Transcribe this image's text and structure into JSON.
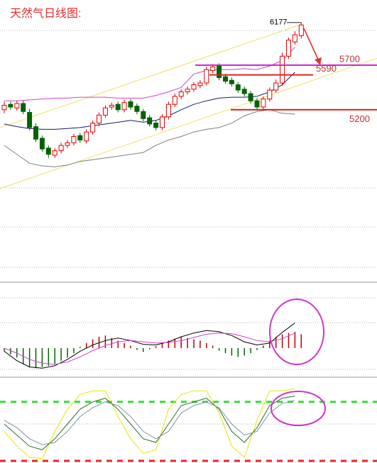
{
  "chart_data": [
    {
      "type": "candlestick",
      "title": "天然气日线图:",
      "open": [
        5200,
        5260,
        5220,
        5270,
        5170,
        5010,
        4880,
        4770,
        4690,
        4740,
        4800,
        4830,
        4910,
        4850,
        4950,
        5050,
        5140,
        5230,
        5260,
        5200,
        5290,
        5240,
        5180,
        5110,
        5050,
        5000,
        5120,
        5260,
        5350,
        5400,
        5430,
        5470,
        5500,
        5640,
        5690,
        5570,
        5530,
        5480,
        5430,
        5380,
        5300,
        5230,
        5320,
        5420,
        5500,
        5800,
        5960,
        6030
      ],
      "high": [
        5290,
        5290,
        5300,
        5300,
        5210,
        5050,
        4910,
        4800,
        4770,
        4830,
        4860,
        4930,
        4940,
        4980,
        5080,
        5170,
        5250,
        5280,
        5290,
        5310,
        5320,
        5270,
        5210,
        5140,
        5080,
        5150,
        5290,
        5380,
        5430,
        5460,
        5510,
        5530,
        5680,
        5710,
        5720,
        5600,
        5560,
        5510,
        5460,
        5410,
        5330,
        5350,
        5450,
        5540,
        5840,
        6010,
        6080,
        6177
      ],
      "low": [
        5160,
        5200,
        5190,
        5150,
        4970,
        4840,
        4730,
        4660,
        4660,
        4710,
        4770,
        4800,
        4830,
        4820,
        4920,
        5020,
        5110,
        5200,
        5170,
        5170,
        5200,
        5150,
        5070,
        5010,
        4970,
        4970,
        5090,
        5230,
        5320,
        5370,
        5400,
        5440,
        5470,
        5610,
        5530,
        5490,
        5460,
        5390,
        5350,
        5270,
        5200,
        5200,
        5290,
        5390,
        5470,
        5770,
        5930,
        6000
      ],
      "close": [
        5250,
        5230,
        5270,
        5180,
        5000,
        4870,
        4760,
        4700,
        4740,
        4800,
        4830,
        4900,
        4860,
        4950,
        5050,
        5140,
        5220,
        5250,
        5200,
        5280,
        5230,
        5180,
        5100,
        5040,
        5000,
        5120,
        5260,
        5350,
        5400,
        5430,
        5480,
        5500,
        5650,
        5680,
        5560,
        5520,
        5490,
        5420,
        5380,
        5300,
        5230,
        5320,
        5420,
        5500,
        5800,
        5980,
        6040,
        6150
      ],
      "up_color": "#e00000",
      "down_color": "#006400",
      "ylim": [
        3330,
        6430
      ],
      "series": [
        {
          "color": "#d040d0",
          "x": [
            0,
            2,
            4,
            6,
            8,
            10,
            12,
            14,
            16,
            18,
            20,
            22,
            24,
            26,
            28,
            30,
            32,
            34,
            36,
            38,
            40,
            42,
            44,
            46
          ],
          "values": [
            5300,
            5300,
            5310,
            5320,
            5330,
            5330,
            5340,
            5340,
            5340,
            5330,
            5330,
            5330,
            5360,
            5400,
            5450,
            5600,
            5640,
            5650,
            5650,
            5660,
            5650,
            5690,
            5750,
            5900
          ]
        },
        {
          "color": "#1a1a6e",
          "x": [
            0,
            2,
            4,
            6,
            8,
            10,
            12,
            14,
            16,
            18,
            20,
            22,
            24,
            26,
            28,
            30,
            32,
            34,
            36,
            38,
            40,
            42,
            44,
            46
          ],
          "values": [
            5040,
            5010,
            4990,
            4980,
            4980,
            4990,
            5000,
            5020,
            5040,
            5060,
            5080,
            5060,
            5080,
            5130,
            5200,
            5260,
            5300,
            5330,
            5340,
            5340,
            5350,
            5400,
            5480,
            5620
          ]
        },
        {
          "color": "#808080",
          "x": [
            0,
            2,
            4,
            6,
            8,
            10,
            12,
            14,
            16,
            18,
            20,
            22,
            24,
            26,
            28,
            30,
            32,
            34,
            36,
            38,
            40,
            42,
            44,
            46
          ],
          "values": [
            4800,
            4700,
            4600,
            4570,
            4560,
            4580,
            4620,
            4640,
            4660,
            4680,
            4700,
            4720,
            4800,
            4860,
            4900,
            4950,
            4980,
            5000,
            5050,
            5130,
            5180,
            5200,
            5160,
            5150
          ]
        }
      ],
      "levels": [
        {
          "value": 5700,
          "color": "#cc22cc"
        },
        {
          "value": 5590,
          "color": "#dd2222"
        },
        {
          "value": 5200,
          "color": "#cc2222"
        }
      ]
    },
    {
      "type": "bar",
      "values": [
        -5,
        -10,
        -15,
        -25,
        -30,
        -32,
        -30,
        -28,
        -25,
        -20,
        -15,
        -8,
        2,
        8,
        14,
        18,
        20,
        16,
        12,
        8,
        4,
        -3,
        -6,
        -2,
        3,
        8,
        12,
        15,
        18,
        16,
        14,
        12,
        8,
        4,
        -4,
        -8,
        -12,
        -14,
        -12,
        -8,
        -3,
        4,
        12,
        18,
        22,
        24,
        26,
        22
      ],
      "up_color": "#c00000",
      "down_color": "#006400",
      "ylim": [
        -35,
        80
      ],
      "series": [
        {
          "color": "#000000",
          "x": [
            0,
            2,
            4,
            6,
            8,
            10,
            12,
            14,
            16,
            18,
            20,
            22,
            24,
            26,
            28,
            30,
            32,
            34,
            36,
            38,
            40,
            42,
            44,
            46
          ],
          "values": [
            -5,
            -20,
            -30,
            -32,
            -28,
            -18,
            -5,
            5,
            12,
            16,
            12,
            6,
            5,
            10,
            18,
            24,
            28,
            26,
            20,
            10,
            5,
            8,
            25,
            40
          ]
        },
        {
          "color": "#d040d0",
          "x": [
            0,
            2,
            4,
            6,
            8,
            10,
            12,
            14,
            16,
            18,
            20,
            22,
            24,
            26,
            28,
            30,
            32,
            34,
            36,
            38,
            40,
            42,
            44,
            46
          ],
          "values": [
            0,
            -8,
            -18,
            -24,
            -26,
            -22,
            -14,
            -4,
            4,
            10,
            12,
            10,
            8,
            9,
            12,
            17,
            22,
            24,
            23,
            18,
            12,
            10,
            15,
            24
          ]
        }
      ]
    },
    {
      "type": "line",
      "ylim": [
        0,
        100
      ],
      "series": [
        {
          "color": "#e6e600",
          "x": [
            0,
            2,
            4,
            6,
            8,
            10,
            12,
            14,
            16,
            18,
            20,
            22,
            24,
            26,
            28,
            30,
            32,
            34,
            36,
            38,
            40,
            42,
            44,
            46
          ],
          "values": [
            40,
            20,
            5,
            3,
            40,
            70,
            90,
            95,
            95,
            60,
            30,
            10,
            15,
            70,
            90,
            95,
            95,
            65,
            20,
            5,
            55,
            95,
            95,
            98
          ]
        },
        {
          "color": "#2e6b2e",
          "x": [
            0,
            2,
            4,
            6,
            8,
            10,
            12,
            14,
            16,
            18,
            20,
            22,
            24,
            26,
            28,
            30,
            32,
            34,
            36,
            38,
            40,
            42,
            44,
            46
          ],
          "values": [
            50,
            35,
            20,
            15,
            30,
            50,
            70,
            80,
            85,
            70,
            50,
            30,
            25,
            50,
            75,
            80,
            85,
            70,
            40,
            25,
            45,
            75,
            85,
            88
          ]
        },
        {
          "color": "#8090a8",
          "x": [
            0,
            2,
            4,
            6,
            8,
            10,
            12,
            14,
            16,
            18,
            20,
            22,
            24,
            26,
            28,
            30,
            32,
            34,
            36,
            38,
            40,
            42,
            44,
            46
          ],
          "values": [
            55,
            45,
            30,
            22,
            25,
            40,
            60,
            72,
            80,
            75,
            60,
            40,
            30,
            40,
            65,
            75,
            80,
            72,
            50,
            35,
            40,
            65,
            78,
            82
          ]
        }
      ],
      "levels": [
        {
          "value": 80,
          "color": "#33dd33"
        },
        {
          "value": 0,
          "color": "#ee2222"
        }
      ]
    }
  ]
}
